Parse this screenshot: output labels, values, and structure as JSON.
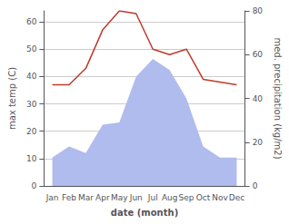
{
  "chart_data": {
    "type": "line",
    "xlabel": "date (month)",
    "ylabel": "max temp (C)",
    "y2label": "med. precipitation (kg/m2)",
    "categories": [
      "Jan",
      "Feb",
      "Mar",
      "Apr",
      "May",
      "Jun",
      "Jul",
      "Aug",
      "Sep",
      "Oct",
      "Nov",
      "Dec"
    ],
    "series": [
      {
        "type": "area",
        "color": "#b0bbee",
        "axis": "y2",
        "values": [
          13,
          18,
          15,
          28,
          29,
          50,
          58,
          53,
          40,
          18,
          13,
          13
        ]
      },
      {
        "type": "line",
        "color": "#c0392b",
        "values": [
          37,
          37,
          43,
          57,
          64,
          63,
          50,
          48,
          50,
          39,
          38,
          37
        ]
      }
    ],
    "ylim": [
      0,
      64
    ],
    "yticks": [
      0,
      10,
      20,
      30,
      40,
      50,
      60
    ],
    "y2lim": [
      0,
      80
    ],
    "y2ticks": [
      0,
      20,
      40,
      60,
      80
    ],
    "grid": true
  }
}
